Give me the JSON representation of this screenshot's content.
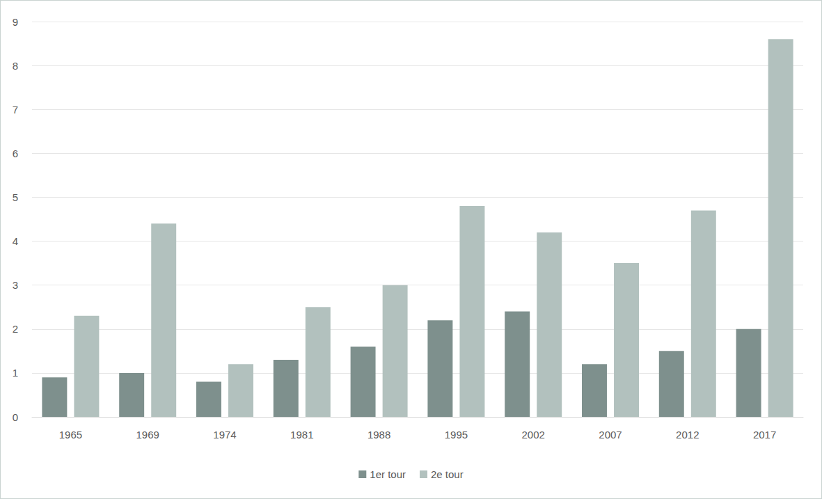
{
  "chart_data": {
    "type": "bar",
    "categories": [
      "1965",
      "1969",
      "1974",
      "1981",
      "1988",
      "1995",
      "2002",
      "2007",
      "2012",
      "2017"
    ],
    "series": [
      {
        "name": "1er tour",
        "color": "#7e908d",
        "values": [
          0.9,
          1.0,
          0.8,
          1.3,
          1.6,
          2.2,
          2.4,
          1.2,
          1.5,
          2.0
        ]
      },
      {
        "name": "2e tour",
        "color": "#b2c1be",
        "values": [
          2.3,
          4.4,
          1.2,
          2.5,
          3.0,
          4.8,
          4.2,
          3.5,
          4.7,
          8.6
        ]
      }
    ],
    "ylim": [
      0,
      9
    ],
    "yticks": [
      0,
      1,
      2,
      3,
      4,
      5,
      6,
      7,
      8,
      9
    ],
    "grid": true,
    "legend": "bottom"
  }
}
